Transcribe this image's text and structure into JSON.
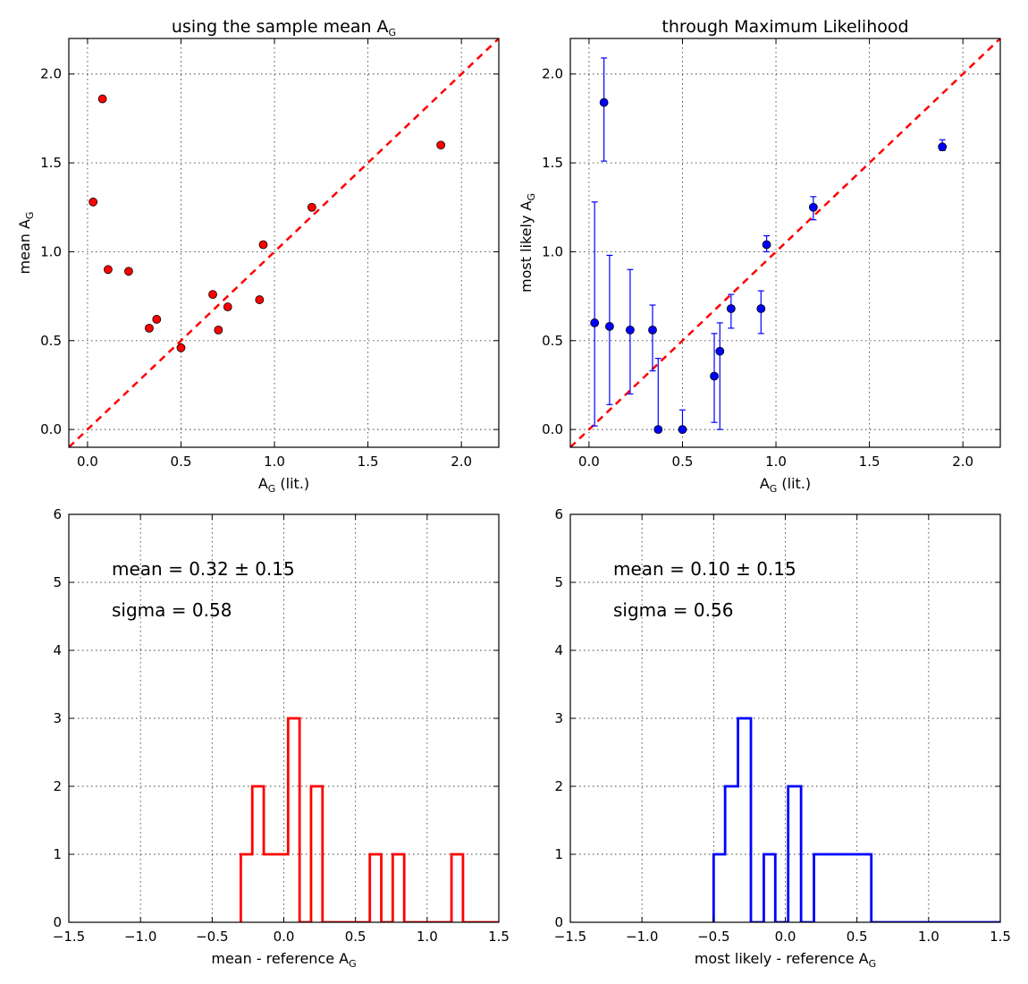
{
  "chart_data": [
    {
      "id": "p1",
      "type": "scatter",
      "title": "using the sample mean A",
      "title_sub": "G",
      "xlabel": "A",
      "xlabel_sub": "G",
      "xlabel_suffix": " (lit.)",
      "ylabel": "mean A",
      "ylabel_sub": "G",
      "xlim": [
        -0.1,
        2.2
      ],
      "ylim": [
        -0.1,
        2.2
      ],
      "xticks": [
        0.0,
        0.5,
        1.0,
        1.5,
        2.0
      ],
      "xtick_labels": [
        "0.0",
        "0.5",
        "1.0",
        "1.5",
        "2.0"
      ],
      "yticks": [
        0.0,
        0.5,
        1.0,
        1.5,
        2.0
      ],
      "ytick_labels": [
        "0.0",
        "0.5",
        "1.0",
        "1.5",
        "2.0"
      ],
      "grid": true,
      "reference_line": {
        "x": [
          -0.1,
          2.2
        ],
        "y": [
          -0.1,
          2.2
        ],
        "color": "#ff0000"
      },
      "marker_color": "#ff0000",
      "x": [
        0.03,
        0.08,
        0.11,
        0.22,
        0.33,
        0.37,
        0.5,
        0.67,
        0.7,
        0.75,
        0.92,
        0.94,
        1.2,
        1.89
      ],
      "y": [
        1.28,
        1.86,
        0.9,
        0.89,
        0.57,
        0.62,
        0.46,
        0.76,
        0.56,
        0.69,
        0.73,
        1.04,
        1.25,
        1.6
      ]
    },
    {
      "id": "p2",
      "type": "scatter",
      "title": "through Maximum Likelihood",
      "title_sub": "",
      "xlabel": "A",
      "xlabel_sub": "G",
      "xlabel_suffix": " (lit.)",
      "ylabel": "most likely A",
      "ylabel_sub": "G",
      "xlim": [
        -0.1,
        2.2
      ],
      "ylim": [
        -0.1,
        2.2
      ],
      "xticks": [
        0.0,
        0.5,
        1.0,
        1.5,
        2.0
      ],
      "xtick_labels": [
        "0.0",
        "0.5",
        "1.0",
        "1.5",
        "2.0"
      ],
      "yticks": [
        0.0,
        0.5,
        1.0,
        1.5,
        2.0
      ],
      "ytick_labels": [
        "0.0",
        "0.5",
        "1.0",
        "1.5",
        "2.0"
      ],
      "grid": true,
      "reference_line": {
        "x": [
          -0.1,
          2.2
        ],
        "y": [
          -0.1,
          2.2
        ],
        "color": "#ff0000"
      },
      "marker_color": "#0000ff",
      "x": [
        0.03,
        0.08,
        0.11,
        0.22,
        0.34,
        0.37,
        0.5,
        0.67,
        0.7,
        0.76,
        0.92,
        0.95,
        1.2,
        1.89
      ],
      "y": [
        0.6,
        1.84,
        0.58,
        0.56,
        0.56,
        0.0,
        0.0,
        0.3,
        0.44,
        0.68,
        0.68,
        1.04,
        1.25,
        1.59
      ],
      "err_low": [
        0.58,
        0.33,
        0.44,
        0.36,
        0.23,
        0.0,
        0.0,
        0.26,
        0.44,
        0.11,
        0.14,
        0.04,
        0.07,
        0.02
      ],
      "err_high": [
        0.68,
        0.25,
        0.4,
        0.34,
        0.14,
        0.4,
        0.11,
        0.24,
        0.16,
        0.08,
        0.1,
        0.05,
        0.06,
        0.04
      ]
    },
    {
      "id": "p3",
      "type": "histogram",
      "xlabel": "mean - reference A",
      "xlabel_sub": "G",
      "xlim": [
        -1.5,
        1.5
      ],
      "ylim": [
        0,
        6
      ],
      "xticks": [
        -1.5,
        -1.0,
        -0.5,
        0.0,
        0.5,
        1.0,
        1.5
      ],
      "xtick_labels": [
        "−1.5",
        "−1.0",
        "−0.5",
        "0.0",
        "0.5",
        "1.0",
        "1.5"
      ],
      "yticks": [
        0,
        1,
        2,
        3,
        4,
        5,
        6
      ],
      "ytick_labels": [
        "0",
        "1",
        "2",
        "3",
        "4",
        "5",
        "6"
      ],
      "grid": true,
      "color": "#ff0000",
      "bin_edges": [
        -0.3,
        -0.22,
        -0.14,
        -0.06,
        0.03,
        0.11,
        0.19,
        0.27,
        0.35,
        0.43,
        0.51,
        0.6,
        0.68,
        0.76,
        0.84,
        0.92,
        1.0,
        1.08,
        1.17,
        1.25,
        1.5
      ],
      "counts": [
        1,
        2,
        1,
        1,
        3,
        0,
        2,
        0,
        0,
        0,
        0,
        1,
        0,
        1,
        0,
        0,
        0,
        0,
        1,
        0
      ],
      "stats": {
        "mean_label": "mean = 0.32 ± 0.15",
        "sigma_label": "sigma = 0.58"
      }
    },
    {
      "id": "p4",
      "type": "histogram",
      "xlabel": "most likely - reference A",
      "xlabel_sub": "G",
      "xlim": [
        -1.5,
        1.5
      ],
      "ylim": [
        0,
        6
      ],
      "xticks": [
        -1.5,
        -1.0,
        -0.5,
        0.0,
        0.5,
        1.0,
        1.5
      ],
      "xtick_labels": [
        "−1.5",
        "−1.0",
        "−0.5",
        "0.0",
        "0.5",
        "1.0",
        "1.5"
      ],
      "yticks": [
        0,
        1,
        2,
        3,
        4,
        5,
        6
      ],
      "ytick_labels": [
        "0",
        "1",
        "2",
        "3",
        "4",
        "5",
        "6"
      ],
      "grid": true,
      "color": "#0000ff",
      "bin_edges": [
        -0.5,
        -0.42,
        -0.33,
        -0.24,
        -0.15,
        -0.07,
        0.02,
        0.11,
        0.2,
        0.28,
        0.37,
        0.46,
        0.54,
        0.6,
        1.5
      ],
      "counts": [
        1,
        2,
        3,
        0,
        1,
        0,
        2,
        0,
        1,
        1,
        1,
        1,
        1,
        0
      ],
      "stats": {
        "mean_label": "mean = 0.10 ± 0.15",
        "sigma_label": "sigma = 0.56"
      }
    }
  ]
}
